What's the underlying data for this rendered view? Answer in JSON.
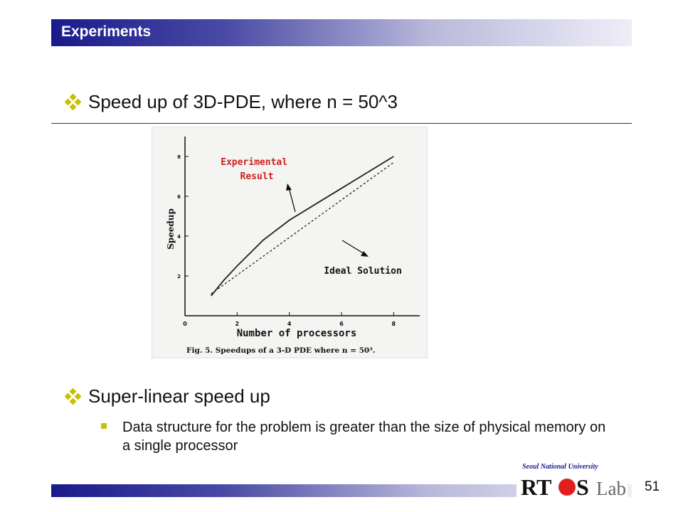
{
  "header": {
    "title": "Experiments"
  },
  "bullets": [
    {
      "text": "Speed up of 3D-PDE, where n = 50^3"
    },
    {
      "text": "Super-linear speed up"
    }
  ],
  "sub_bullets": [
    {
      "text": "Data structure for the problem is greater than the size of physical memory on a single processor"
    }
  ],
  "chart_data": {
    "type": "line",
    "xlabel": "Number of processors",
    "ylabel": "Speedup",
    "xlim": [
      0,
      9
    ],
    "ylim": [
      0,
      9
    ],
    "xticks": [
      0,
      2,
      4,
      6,
      8
    ],
    "yticks": [
      2,
      4,
      6,
      8
    ],
    "caption": "Fig. 5.   Speedups of a 3-D PDE where n = 50³.",
    "series": [
      {
        "name": "Experimental Result",
        "style": "solid",
        "x": [
          1,
          1.5,
          2,
          3,
          4,
          5,
          6,
          7,
          8
        ],
        "y": [
          1.0,
          1.8,
          2.5,
          3.8,
          4.8,
          5.6,
          6.4,
          7.2,
          8.0
        ]
      },
      {
        "name": "Ideal Solution",
        "style": "dashed",
        "x": [
          1,
          8
        ],
        "y": [
          1.1,
          7.7
        ]
      }
    ],
    "annotations": [
      {
        "text": "Experimental\nResult",
        "lines": [
          "Experimental",
          "Result"
        ],
        "color": "#cc2222"
      },
      {
        "text": "Ideal Solution",
        "color": "#111111"
      }
    ]
  },
  "footer": {
    "page_number": "51",
    "logo_university": "Seoul National University",
    "logo_text_bold": "RT",
    "logo_text_s": "S",
    "logo_text_lab": "Lab"
  },
  "colors": {
    "accent_bullet": "#c8c000",
    "header_blue": "#1a1a8c",
    "annotation_red": "#cc2222",
    "logo_red": "#e02020"
  }
}
